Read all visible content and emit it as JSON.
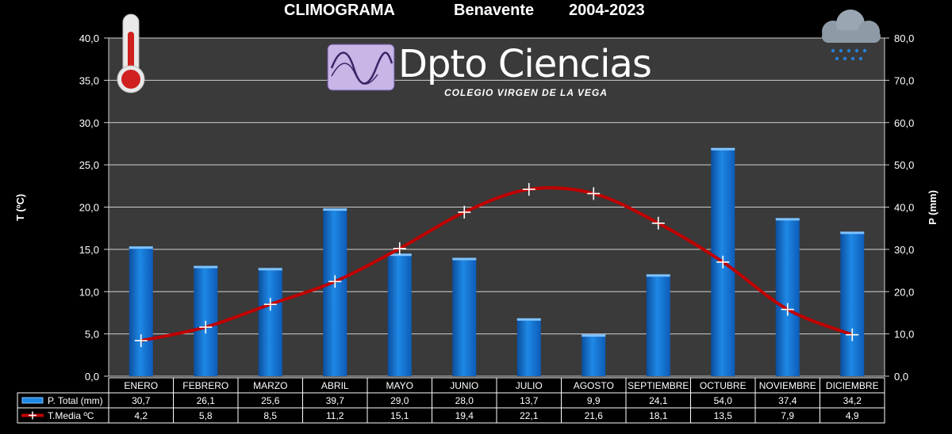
{
  "title": {
    "main": "CLIMOGRAMA",
    "place": "Benavente",
    "years": "2004-2023"
  },
  "logo": {
    "text": "Dpto Ciencias",
    "subtitle": "COLEGIO VIRGEN DE LA VEGA"
  },
  "icons": {
    "left": "thermometer-icon",
    "right": "rain-cloud-icon"
  },
  "colors": {
    "background": "#000000",
    "plot_area": "#3a3a3a",
    "bar": "#1e88e5",
    "line": "#c00000",
    "marker": "#ffffff",
    "grid": "#cfcfcf"
  },
  "chart_data": {
    "type": "bar",
    "categories": [
      "ENERO",
      "FEBRERO",
      "MARZO",
      "ABRIL",
      "MAYO",
      "JUNIO",
      "JULIO",
      "AGOSTO",
      "SEPTIEMBRE",
      "OCTUBRE",
      "NOVIEMBRE",
      "DICIEMBRE"
    ],
    "series": [
      {
        "name": "P. Total (mm)",
        "type": "bar",
        "axis": "right",
        "values": [
          30.7,
          26.1,
          25.6,
          39.7,
          29.0,
          28.0,
          13.7,
          9.9,
          24.1,
          54.0,
          37.4,
          34.2
        ],
        "labels": [
          "30,7",
          "26,1",
          "25,6",
          "39,7",
          "29,0",
          "28,0",
          "13,7",
          "9,9",
          "24,1",
          "54,0",
          "37,4",
          "34,2"
        ]
      },
      {
        "name": "T.Media ºC",
        "type": "line",
        "axis": "left",
        "values": [
          4.2,
          5.8,
          8.5,
          11.2,
          15.1,
          19.4,
          22.1,
          21.6,
          18.1,
          13.5,
          7.9,
          4.9
        ],
        "labels": [
          "4,2",
          "5,8",
          "8,5",
          "11,2",
          "15,1",
          "19,4",
          "22,1",
          "21,6",
          "18,1",
          "13,5",
          "7,9",
          "4,9"
        ]
      }
    ],
    "ylabel": "T (ºC)",
    "y2label": "P (mm)",
    "ylim": [
      0,
      40
    ],
    "y2lim": [
      0,
      80
    ],
    "yticks": [
      "0,0",
      "5,0",
      "10,0",
      "15,0",
      "20,0",
      "25,0",
      "30,0",
      "35,0",
      "40,0"
    ],
    "y2ticks": [
      "0,0",
      "10,0",
      "20,0",
      "30,0",
      "40,0",
      "50,0",
      "60,0",
      "70,0",
      "80,0"
    ],
    "grid": true,
    "legend": "data-table"
  }
}
